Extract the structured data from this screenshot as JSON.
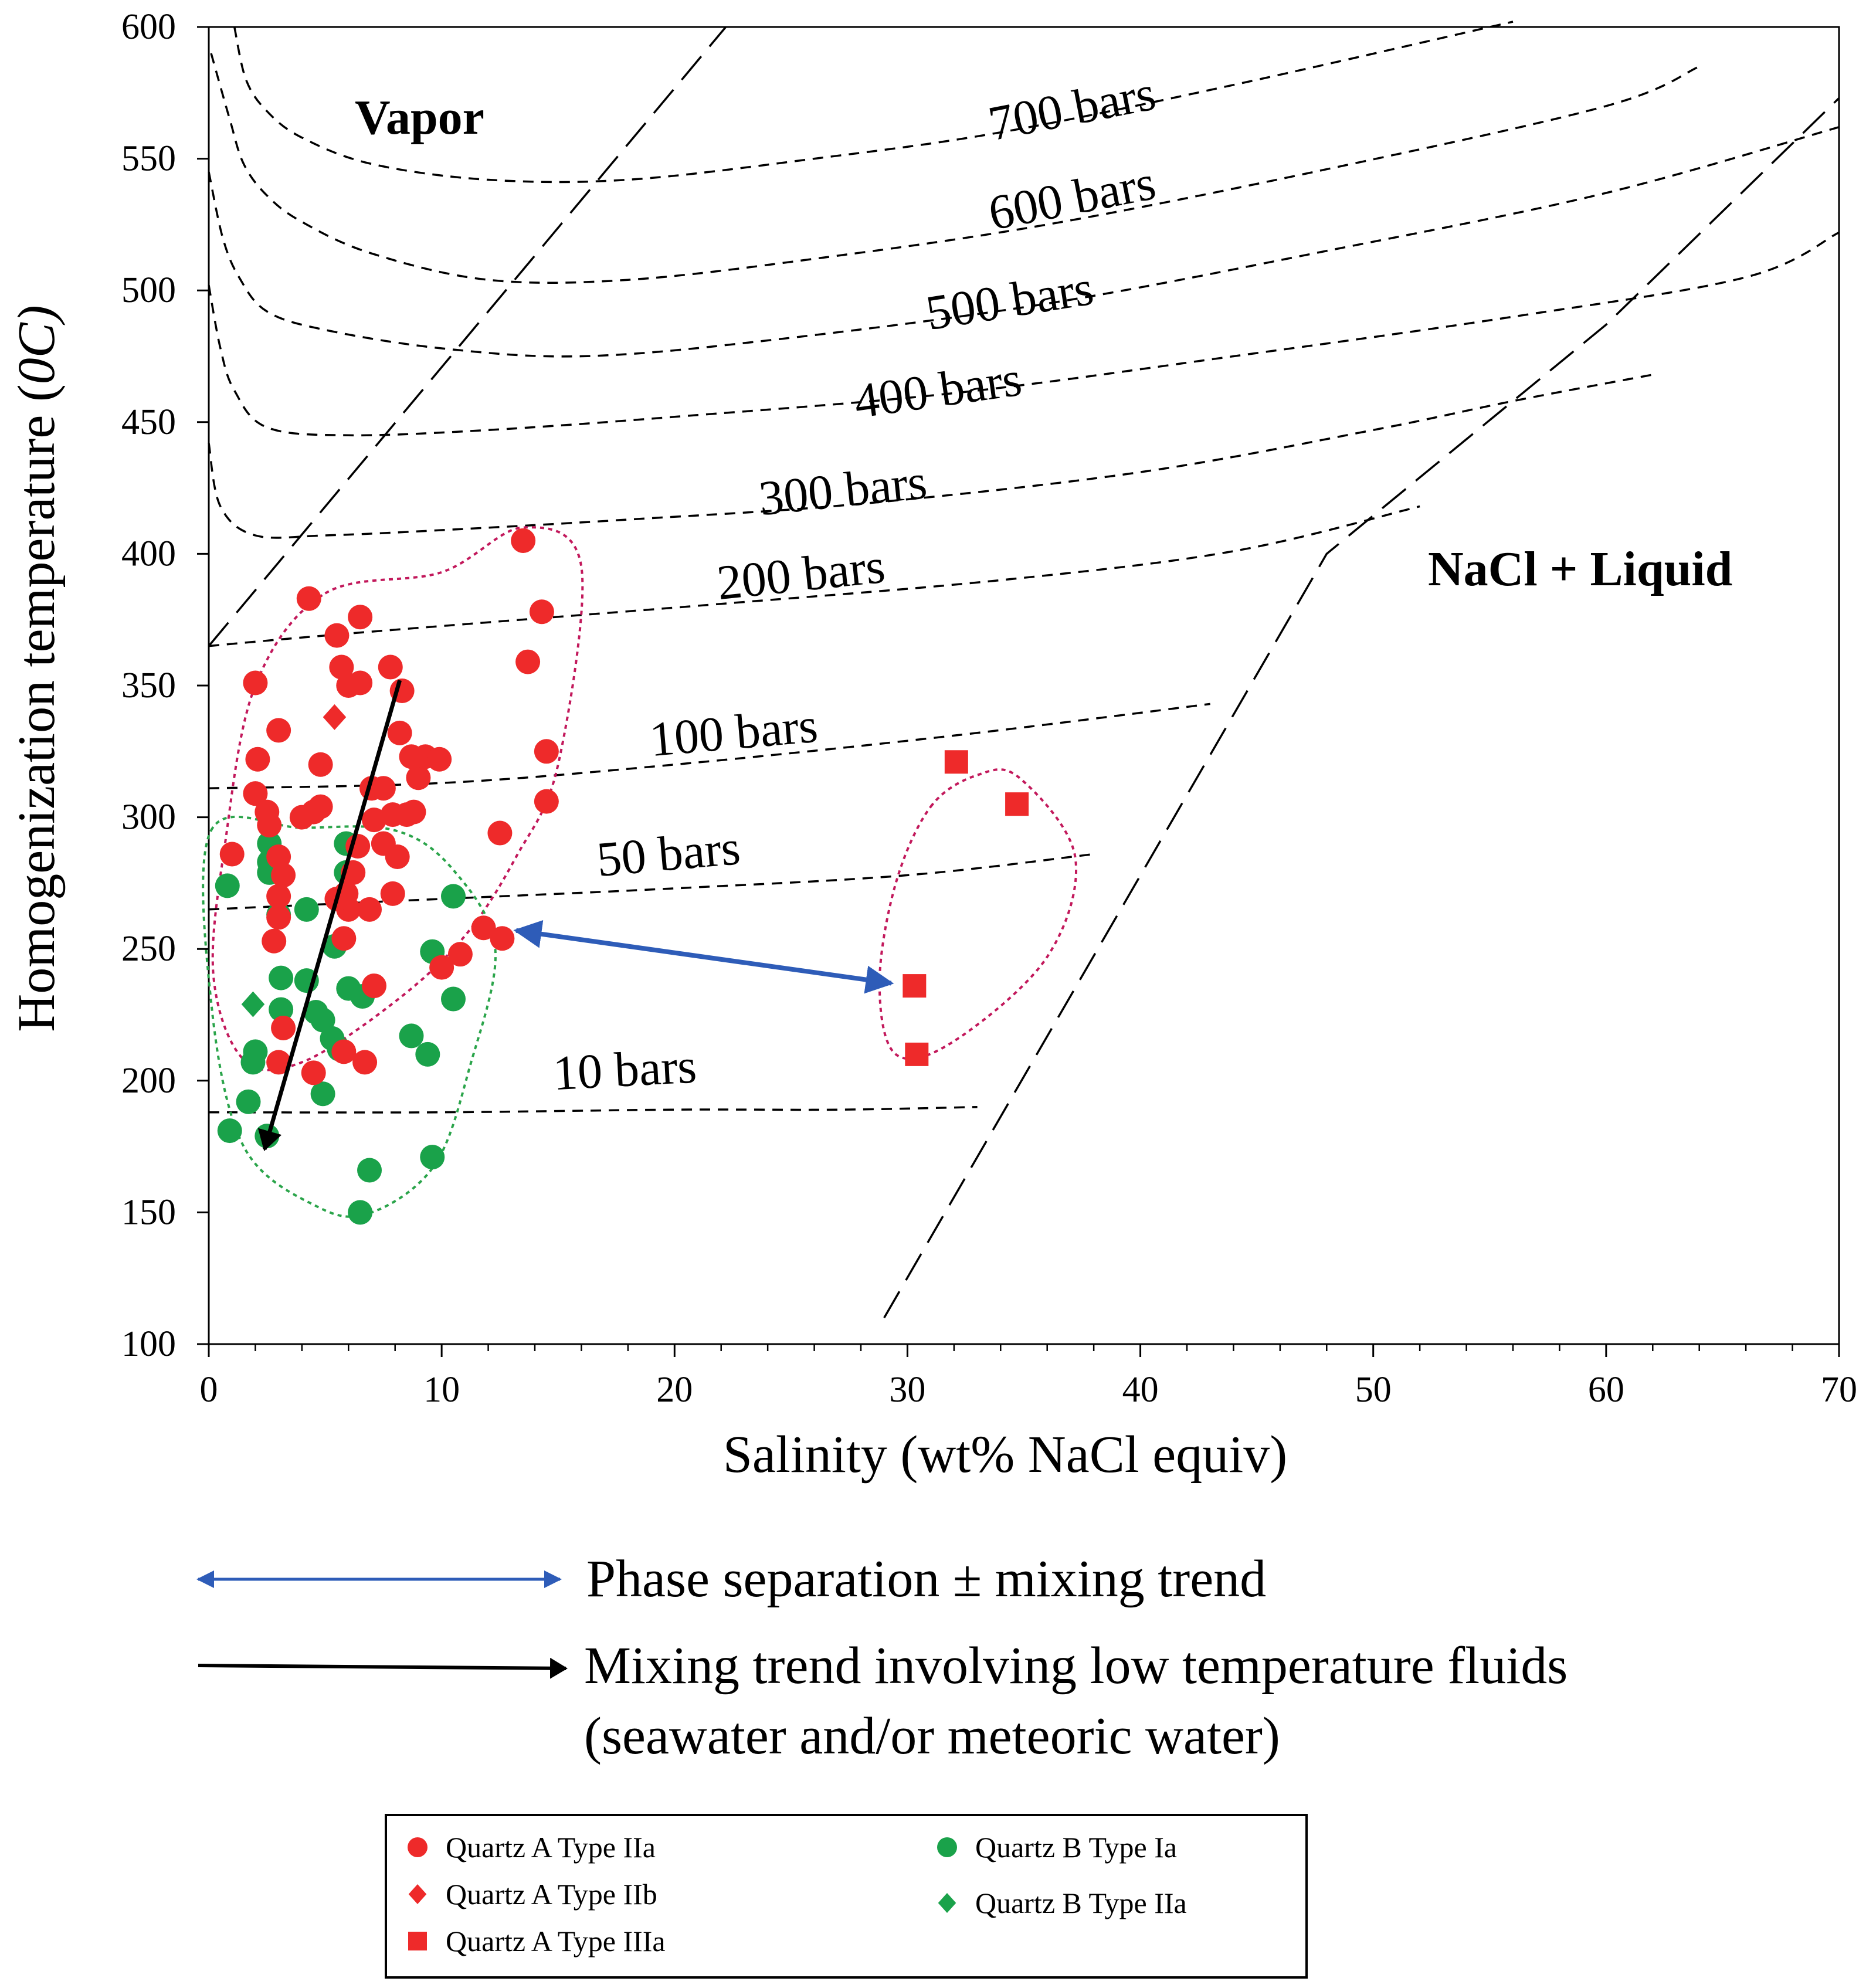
{
  "chart_data": {
    "type": "scatter",
    "title": "",
    "xlabel": "Salinity (wt% NaCl equiv)",
    "ylabel": "Homogenization temperature (",
    "ylabel_unit": "0C)",
    "xlim": [
      0,
      70
    ],
    "ylim": [
      100,
      600
    ],
    "x_ticks": [
      0,
      10,
      20,
      30,
      40,
      50,
      60,
      70
    ],
    "y_ticks": [
      100,
      150,
      200,
      250,
      300,
      350,
      400,
      450,
      500,
      550,
      600
    ],
    "x_tick_labels": [
      "0",
      "10",
      "20",
      "30",
      "40",
      "50",
      "60",
      "70"
    ],
    "y_tick_labels": [
      "100",
      "150",
      "200",
      "250",
      "300",
      "350",
      "400",
      "450",
      "500",
      "550",
      "600"
    ],
    "region_labels": {
      "vapor": "Vapor",
      "nacl_liquid": "NaCl + Liquid"
    },
    "isobars": [
      {
        "label": "700 bars",
        "points": [
          [
            1.1,
            600
          ],
          [
            1.6,
            580
          ],
          [
            2.5,
            568
          ],
          [
            4,
            558
          ],
          [
            7,
            548
          ],
          [
            12,
            542
          ],
          [
            18,
            542
          ],
          [
            26,
            550
          ],
          [
            34,
            560
          ],
          [
            44,
            578
          ],
          [
            56,
            602
          ]
        ]
      },
      {
        "label": "600 bars",
        "points": [
          [
            0.1,
            590
          ],
          [
            0.9,
            565
          ],
          [
            1.5,
            548
          ],
          [
            2.5,
            536
          ],
          [
            4,
            526
          ],
          [
            7,
            514
          ],
          [
            12,
            504
          ],
          [
            18,
            504
          ],
          [
            26,
            512
          ],
          [
            36,
            525
          ],
          [
            48,
            546
          ],
          [
            60,
            570
          ],
          [
            64,
            585
          ]
        ]
      },
      {
        "label": "500 bars",
        "points": [
          [
            0,
            545
          ],
          [
            0.6,
            520
          ],
          [
            1.3,
            505
          ],
          [
            2.5,
            492
          ],
          [
            5,
            485
          ],
          [
            10,
            478
          ],
          [
            16,
            475
          ],
          [
            24,
            481
          ],
          [
            36,
            495
          ],
          [
            48,
            515
          ],
          [
            60,
            537
          ],
          [
            70,
            562
          ]
        ]
      },
      {
        "label": "400 bars",
        "points": [
          [
            0,
            502
          ],
          [
            0.5,
            478
          ],
          [
            1.1,
            462
          ],
          [
            2.5,
            448
          ],
          [
            6,
            445
          ],
          [
            12,
            447
          ],
          [
            20,
            452
          ],
          [
            32,
            461
          ],
          [
            44,
            475
          ],
          [
            56,
            490
          ],
          [
            66,
            505
          ],
          [
            70,
            522
          ]
        ]
      },
      {
        "label": "300 bars",
        "points": [
          [
            0,
            442
          ],
          [
            0.5,
            418
          ],
          [
            2,
            407
          ],
          [
            5,
            407
          ],
          [
            10,
            409
          ],
          [
            18,
            413
          ],
          [
            28,
            419
          ],
          [
            40,
            431
          ],
          [
            50,
            447
          ],
          [
            56,
            458
          ],
          [
            62,
            468
          ]
        ]
      },
      {
        "label": "200 bars",
        "points": [
          [
            0,
            365
          ],
          [
            5,
            369
          ],
          [
            12,
            374
          ],
          [
            22,
            381
          ],
          [
            34,
            390
          ],
          [
            44,
            401
          ],
          [
            52,
            418
          ]
        ]
      },
      {
        "label": "100 bars",
        "points": [
          [
            0,
            311
          ],
          [
            10,
            313
          ],
          [
            20,
            320
          ],
          [
            32,
            331
          ],
          [
            43,
            343
          ]
        ]
      },
      {
        "label": "50 bars",
        "points": [
          [
            0,
            265
          ],
          [
            10,
            269
          ],
          [
            20,
            273
          ],
          [
            30,
            278
          ],
          [
            38,
            286
          ]
        ]
      },
      {
        "label": "10 bars",
        "points": [
          [
            0,
            188
          ],
          [
            10,
            188
          ],
          [
            20,
            189
          ],
          [
            27,
            189
          ],
          [
            33,
            190
          ]
        ]
      }
    ],
    "boundary_lines": [
      {
        "name": "vapor-boundary",
        "points": [
          [
            0,
            365
          ],
          [
            22.2,
            600
          ]
        ]
      },
      {
        "name": "halite-saturation",
        "points": [
          [
            29,
            110
          ],
          [
            48,
            400
          ],
          [
            60,
            487
          ],
          [
            70,
            573
          ]
        ]
      }
    ],
    "envelopes": [
      {
        "name": "quartz-a-type-iia-envelope",
        "color": "#c2185b",
        "points": [
          [
            5,
            385
          ],
          [
            10,
            393
          ],
          [
            13.5,
            410
          ],
          [
            16,
            395
          ],
          [
            15,
            320
          ],
          [
            13.2,
            285
          ],
          [
            11,
            255
          ],
          [
            8,
            230
          ],
          [
            4,
            207
          ],
          [
            1.5,
            208
          ],
          [
            0.2,
            240
          ],
          [
            0.7,
            290
          ],
          [
            2,
            350
          ]
        ]
      },
      {
        "name": "quartz-b-envelope",
        "color": "#2aa44a",
        "points": [
          [
            0.1,
            295
          ],
          [
            4,
            296
          ],
          [
            8,
            295
          ],
          [
            10.5,
            280
          ],
          [
            12.3,
            250
          ],
          [
            11.2,
            205
          ],
          [
            9.7,
            168
          ],
          [
            7,
            150
          ],
          [
            4.7,
            152
          ],
          [
            1.5,
            175
          ],
          [
            0.1,
            230
          ]
        ]
      },
      {
        "name": "quartz-a-type-iiia-envelope",
        "color": "#c2185b",
        "points": [
          [
            31,
            304
          ],
          [
            33,
            316
          ],
          [
            34.8,
            315
          ],
          [
            37.2,
            285
          ],
          [
            36,
            247
          ],
          [
            32,
            215
          ],
          [
            29.5,
            210
          ],
          [
            28.8,
            237
          ],
          [
            29.5,
            275
          ]
        ]
      }
    ],
    "series": [
      {
        "name": "Quartz A Type IIa",
        "marker": "circle",
        "color": "#ee2a2a",
        "points": [
          [
            1,
            286
          ],
          [
            2,
            351
          ],
          [
            2.1,
            322
          ],
          [
            2,
            309
          ],
          [
            2.5,
            302
          ],
          [
            2.6,
            297
          ],
          [
            3,
            333
          ],
          [
            3,
            285
          ],
          [
            3.2,
            278
          ],
          [
            3,
            270
          ],
          [
            2.8,
            253
          ],
          [
            3,
            262
          ],
          [
            3.2,
            220
          ],
          [
            3,
            207
          ],
          [
            4,
            300
          ],
          [
            4.3,
            383
          ],
          [
            4.5,
            302
          ],
          [
            4.8,
            304
          ],
          [
            4.8,
            320
          ],
          [
            5.5,
            369
          ],
          [
            5.7,
            357
          ],
          [
            6,
            350
          ],
          [
            6.5,
            376
          ],
          [
            6.5,
            351
          ],
          [
            6.4,
            289
          ],
          [
            6.2,
            279
          ],
          [
            5.9,
            271
          ],
          [
            6,
            265
          ],
          [
            5.5,
            269
          ],
          [
            5.8,
            254
          ],
          [
            7,
            311
          ],
          [
            7.1,
            299
          ],
          [
            7.5,
            290
          ],
          [
            7.5,
            311
          ],
          [
            7.8,
            357
          ],
          [
            8.3,
            348
          ],
          [
            8.2,
            332
          ],
          [
            8.7,
            323
          ],
          [
            9,
            315
          ],
          [
            8.5,
            301
          ],
          [
            7.9,
            301
          ],
          [
            8.1,
            285
          ],
          [
            7.9,
            271
          ],
          [
            6.9,
            265
          ],
          [
            7.1,
            236
          ],
          [
            6.7,
            207
          ],
          [
            5.8,
            211
          ],
          [
            4.5,
            203
          ],
          [
            8.8,
            302
          ],
          [
            9.3,
            323
          ],
          [
            9.9,
            322
          ],
          [
            10.8,
            248
          ],
          [
            10,
            243
          ],
          [
            11.8,
            258
          ],
          [
            12.5,
            294
          ],
          [
            12.6,
            254
          ],
          [
            13.5,
            405
          ],
          [
            14.3,
            378
          ],
          [
            13.7,
            359
          ],
          [
            14.5,
            325
          ],
          [
            14.5,
            306
          ]
        ]
      },
      {
        "name": "Quartz A Type IIb",
        "marker": "diamond",
        "color": "#ee2a2a",
        "points": [
          [
            5.4,
            338
          ]
        ]
      },
      {
        "name": "Quartz A Type IIIa",
        "marker": "square",
        "color": "#ee2a2a",
        "points": [
          [
            32.1,
            321
          ],
          [
            34.7,
            305
          ],
          [
            30.3,
            236
          ],
          [
            30.4,
            210
          ]
        ]
      },
      {
        "name": "Quartz B Type Ia",
        "marker": "circle",
        "color": "#1aa24a",
        "points": [
          [
            0.8,
            274
          ],
          [
            0.9,
            181
          ],
          [
            1.7,
            192
          ],
          [
            1.9,
            207
          ],
          [
            2,
            211
          ],
          [
            2.6,
            290
          ],
          [
            2.6,
            283
          ],
          [
            2.6,
            279
          ],
          [
            2.5,
            179
          ],
          [
            3,
            263
          ],
          [
            3.1,
            239
          ],
          [
            3.1,
            227
          ],
          [
            4.2,
            238
          ],
          [
            4.2,
            265
          ],
          [
            4.6,
            226
          ],
          [
            4.9,
            223
          ],
          [
            4.9,
            195
          ],
          [
            5.4,
            251
          ],
          [
            5.3,
            216
          ],
          [
            5.6,
            212
          ],
          [
            5.9,
            290
          ],
          [
            5.9,
            279
          ],
          [
            6,
            235
          ],
          [
            6.6,
            232
          ],
          [
            6.5,
            150
          ],
          [
            6.9,
            166
          ],
          [
            8.7,
            217
          ],
          [
            9.4,
            210
          ],
          [
            9.6,
            249
          ],
          [
            9.6,
            171
          ],
          [
            10.5,
            270
          ],
          [
            10.5,
            231
          ]
        ]
      },
      {
        "name": "Quartz B Type IIa",
        "marker": "diamond",
        "color": "#1aa24a",
        "points": [
          [
            1.9,
            229
          ]
        ]
      }
    ],
    "trend_arrows": [
      {
        "name": "phase-separation-arrow",
        "color": "#2e5cb8",
        "from": [
          13.2,
          257
        ],
        "to": [
          29.3,
          237
        ],
        "double": true
      },
      {
        "name": "mixing-trend-arrow",
        "color": "#000000",
        "from": [
          8.2,
          352
        ],
        "to": [
          2.4,
          174
        ],
        "double": false
      }
    ],
    "legend": {
      "position": "bottom",
      "arrow_entries": [
        {
          "label": "Phase separation ± mixing trend",
          "color": "#2e5cb8",
          "double": true
        },
        {
          "label": "Mixing trend involving low temperature fluids",
          "label2": "(seawater and/or meteoric water)",
          "color": "#000000",
          "double": false
        }
      ],
      "marker_entries": [
        {
          "label": "Quartz A Type IIa",
          "marker": "circle",
          "color": "#ee2a2a"
        },
        {
          "label": "Quartz A Type IIb",
          "marker": "diamond",
          "color": "#ee2a2a"
        },
        {
          "label": "Quartz A Type IIIa",
          "marker": "square",
          "color": "#ee2a2a"
        },
        {
          "label": "Quartz B Type Ia",
          "marker": "circle",
          "color": "#1aa24a"
        },
        {
          "label": "Quartz B Type IIa",
          "marker": "diamond",
          "color": "#1aa24a"
        }
      ]
    }
  }
}
